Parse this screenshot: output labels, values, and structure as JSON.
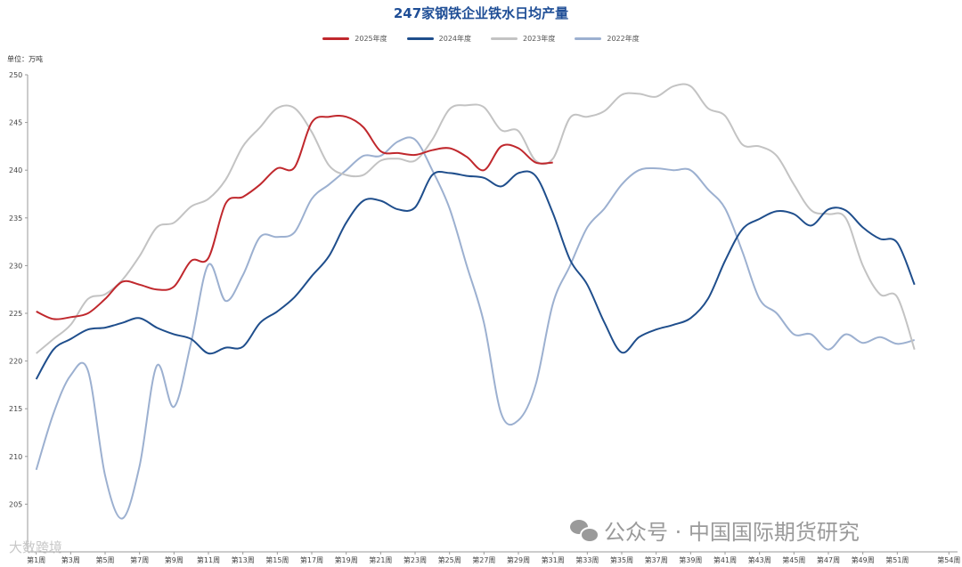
{
  "chart_data": {
    "type": "line",
    "title": "247家钢铁企业铁水日均产量",
    "unit_label": "单位：万吨",
    "ylim": [
      200,
      250
    ],
    "yticks": [
      250,
      245,
      240,
      235,
      230,
      225,
      220,
      215,
      210,
      205
    ],
    "xticks": [
      "第1周",
      "第3周",
      "第5周",
      "第7周",
      "第9周",
      "第11周",
      "第13周",
      "第15周",
      "第17周",
      "第19周",
      "第21周",
      "第23周",
      "第25周",
      "第27周",
      "第29周",
      "第31周",
      "第33周",
      "第35周",
      "第37周",
      "第39周",
      "第41周",
      "第43周",
      "第45周",
      "第47周",
      "第49周",
      "第51周",
      "第54周"
    ],
    "grid": false,
    "legend_position": "top",
    "series": [
      {
        "name": "2025年度",
        "color": "#c0282d",
        "x": [
          1,
          2,
          3,
          4,
          5,
          6,
          7,
          8,
          9,
          10,
          11,
          12,
          13,
          14,
          15,
          16,
          17,
          18,
          19,
          20,
          21,
          22,
          23,
          24,
          25,
          26,
          27,
          28,
          29,
          30,
          31
        ],
        "values": [
          225.2,
          224.4,
          224.6,
          225.0,
          226.5,
          228.3,
          228.0,
          227.5,
          227.8,
          230.5,
          230.8,
          236.5,
          237.2,
          238.5,
          240.2,
          240.3,
          245.0,
          245.6,
          245.6,
          244.5,
          242.0,
          241.8,
          241.6,
          242.1,
          242.3,
          241.4,
          240.0,
          242.5,
          242.3,
          240.8,
          240.8
        ]
      },
      {
        "name": "2024年度",
        "color": "#1f4e8c",
        "x": [
          1,
          2,
          3,
          4,
          5,
          6,
          7,
          8,
          9,
          10,
          11,
          12,
          13,
          14,
          15,
          16,
          17,
          18,
          19,
          20,
          21,
          22,
          23,
          24,
          25,
          26,
          27,
          28,
          29,
          30,
          31,
          32,
          33,
          34,
          35,
          36,
          37,
          38,
          39,
          40,
          41,
          42,
          43,
          44,
          45,
          46,
          47,
          48,
          49,
          50,
          51,
          52
        ],
        "values": [
          218.1,
          221.2,
          222.3,
          223.3,
          223.5,
          224.0,
          224.5,
          223.5,
          222.8,
          222.3,
          220.8,
          221.4,
          221.5,
          224.0,
          225.2,
          226.7,
          228.9,
          231.0,
          234.5,
          236.8,
          236.8,
          235.9,
          236.1,
          239.5,
          239.7,
          239.4,
          239.2,
          238.3,
          239.7,
          239.4,
          235.5,
          230.6,
          228.0,
          224.0,
          220.9,
          222.5,
          223.3,
          223.8,
          224.5,
          226.5,
          230.5,
          233.8,
          234.9,
          235.7,
          235.4,
          234.2,
          235.9,
          235.8,
          234.0,
          232.8,
          232.4,
          228.0
        ]
      },
      {
        "name": "2023年度",
        "color": "#c3c3c3",
        "x": [
          1,
          2,
          3,
          4,
          5,
          6,
          7,
          8,
          9,
          10,
          11,
          12,
          13,
          14,
          15,
          16,
          17,
          18,
          19,
          20,
          21,
          22,
          23,
          24,
          25,
          26,
          27,
          28,
          29,
          30,
          31,
          32,
          33,
          34,
          35,
          36,
          37,
          38,
          39,
          40,
          41,
          42,
          43,
          44,
          45,
          46,
          47,
          48,
          49,
          50,
          51,
          52
        ],
        "values": [
          220.8,
          222.3,
          223.8,
          226.5,
          227.0,
          228.5,
          231.0,
          234.0,
          234.5,
          236.2,
          237.0,
          239.0,
          242.5,
          244.5,
          246.5,
          246.5,
          244.0,
          240.5,
          239.5,
          239.5,
          241.0,
          241.2,
          241.0,
          243.2,
          246.4,
          246.8,
          246.6,
          244.2,
          244.1,
          241.0,
          241.2,
          245.5,
          245.6,
          246.2,
          247.9,
          248.0,
          247.7,
          248.8,
          248.8,
          246.5,
          245.7,
          242.7,
          242.5,
          241.5,
          238.5,
          235.8,
          235.4,
          235.0,
          230.0,
          227.0,
          226.7,
          221.2
        ]
      },
      {
        "name": "2022年度",
        "color": "#9cb0d0",
        "x": [
          1,
          2,
          3,
          4,
          5,
          6,
          7,
          8,
          9,
          10,
          11,
          12,
          13,
          14,
          15,
          16,
          17,
          18,
          19,
          20,
          21,
          22,
          23,
          24,
          25,
          26,
          27,
          28,
          29,
          30,
          31,
          32,
          33,
          34,
          35,
          36,
          37,
          38,
          39,
          40,
          41,
          42,
          43,
          44,
          45,
          46,
          47,
          48,
          49,
          50,
          51,
          52
        ],
        "values": [
          208.6,
          214.5,
          218.5,
          219.0,
          208.0,
          203.5,
          209.0,
          219.5,
          215.2,
          222.0,
          230.1,
          226.3,
          229.0,
          233.0,
          233.0,
          233.5,
          237.0,
          238.5,
          240.0,
          241.5,
          241.5,
          243.0,
          243.2,
          240.0,
          236.0,
          230.0,
          224.0,
          214.5,
          213.8,
          217.5,
          226.0,
          230.0,
          234.0,
          236.0,
          238.5,
          240.0,
          240.2,
          240.0,
          240.0,
          238.0,
          236.0,
          231.5,
          226.5,
          225.0,
          222.8,
          222.8,
          221.2,
          222.8,
          221.9,
          222.5,
          221.8,
          222.2
        ]
      }
    ]
  },
  "watermark_left": "大数跨境",
  "watermark_right": "公众号 · 中国国际期货研究"
}
